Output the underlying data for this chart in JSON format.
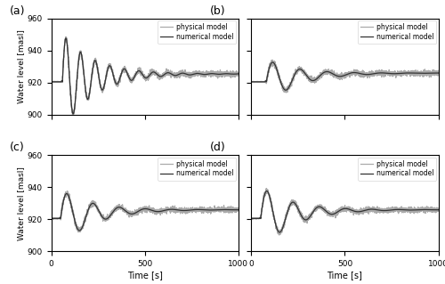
{
  "title_a": "(a)",
  "title_b": "(b)",
  "title_c": "(c)",
  "title_d": "(d)",
  "xlabel": "Time [s]",
  "ylabel": "Water level [masl]",
  "xlim": [
    0,
    1000
  ],
  "ylim": [
    900,
    960
  ],
  "yticks": [
    900,
    920,
    940,
    960
  ],
  "xticks": [
    0,
    500,
    1000
  ],
  "legend_physical": "physical model",
  "legend_numerical": "numerical model",
  "physical_color": "#aaaaaa",
  "numerical_color": "#333333",
  "background_color": "#ffffff",
  "base_level": 920.5,
  "settle_a": 925.5,
  "settle_bcd": 926.0,
  "t_start_a": 60,
  "t_start_b": 80,
  "t_start_cd": 50,
  "amplitude_a": 30,
  "amplitude_b": 14,
  "amplitude_c": 18,
  "amplitude_d": 20,
  "decay_a": 0.006,
  "decay_b": 0.006,
  "decay_c": 0.006,
  "decay_d": 0.006,
  "period_a": 78,
  "period_b": 145,
  "period_c": 140,
  "period_d": 140,
  "noise_scale_phys": 0.8,
  "lw_num": 0.9,
  "lw_phys": 0.9
}
